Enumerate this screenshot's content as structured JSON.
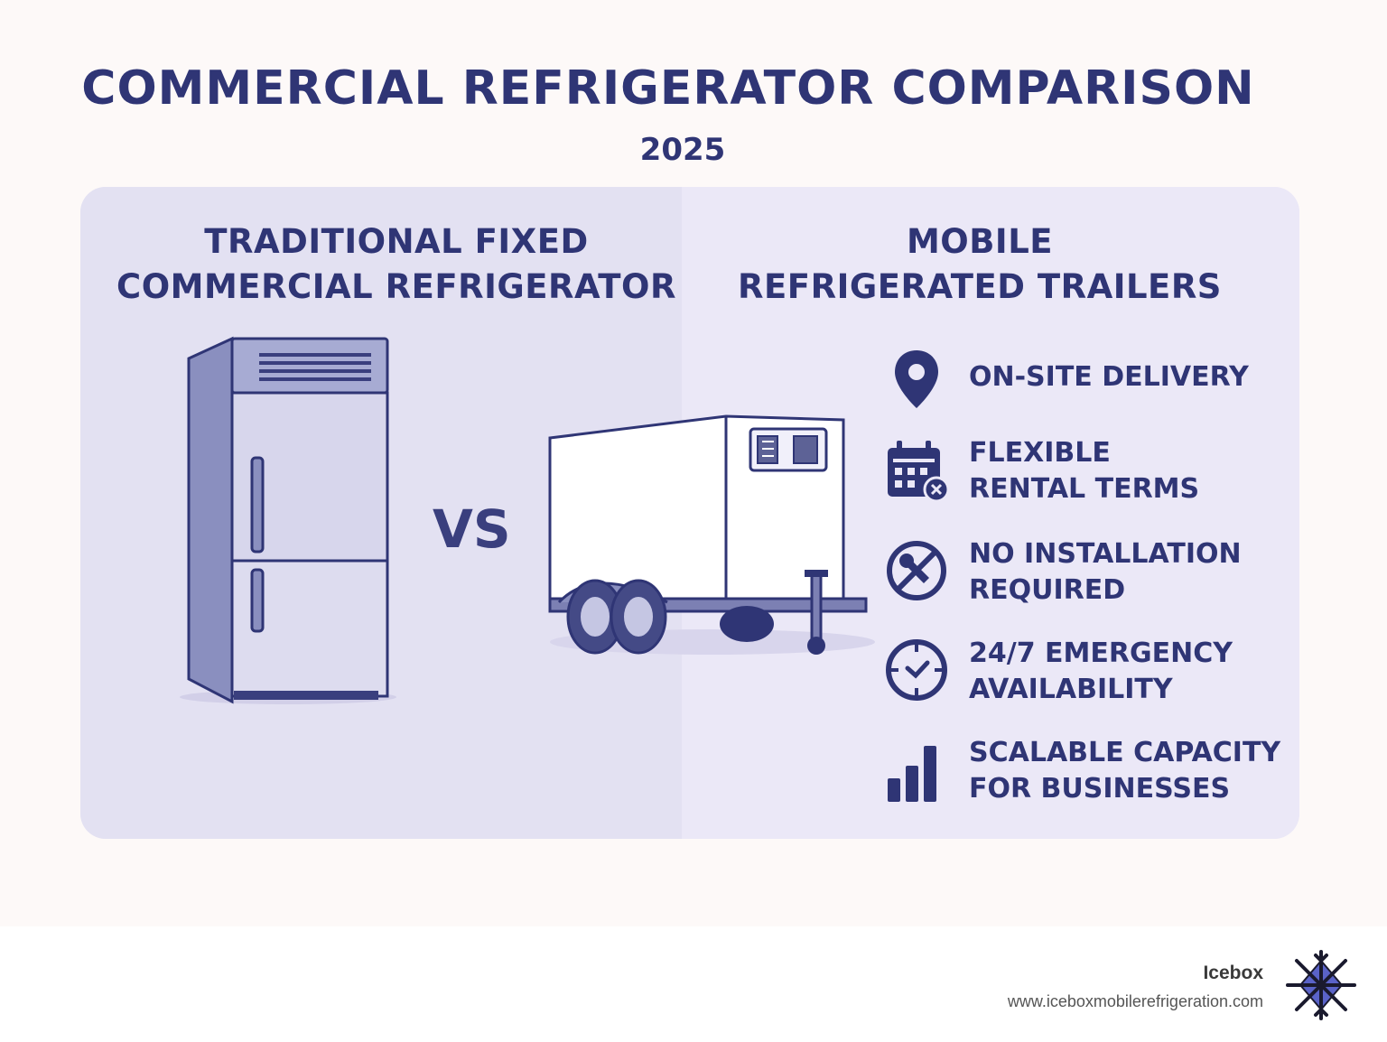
{
  "header": {
    "title": "COMMERCIAL REFRIGERATOR COMPARISON",
    "year": "2025"
  },
  "comparison": {
    "left_title_line1": "TRADITIONAL FIXED",
    "left_title_line2": "COMMERCIAL REFRIGERATOR",
    "vs_label": "VS",
    "right_title_line1": "MOBILE",
    "right_title_line2": "REFRIGERATED TRAILERS"
  },
  "features": [
    {
      "icon": "location-pin-icon",
      "line1": "ON-SITE DELIVERY",
      "line2": ""
    },
    {
      "icon": "calendar-icon",
      "line1": "FLEXIBLE",
      "line2": "RENTAL TERMS"
    },
    {
      "icon": "no-wrench-icon",
      "line1": "NO INSTALLATION",
      "line2": "REQUIRED"
    },
    {
      "icon": "clock-icon",
      "line1": "24/7 EMERGENCY",
      "line2": "AVAILABILITY"
    },
    {
      "icon": "bar-chart-icon",
      "line1": "SCALABLE CAPACITY",
      "line2": "FOR BUSINESSES"
    }
  ],
  "footer": {
    "brand": "Icebox",
    "url": "www.iceboxmobilerefrigeration.com"
  },
  "colors": {
    "navy": "#2f3575",
    "panel_left": "#e3e1f2",
    "panel_right": "#ebe8f7",
    "logo_blue": "#5a63c8"
  }
}
